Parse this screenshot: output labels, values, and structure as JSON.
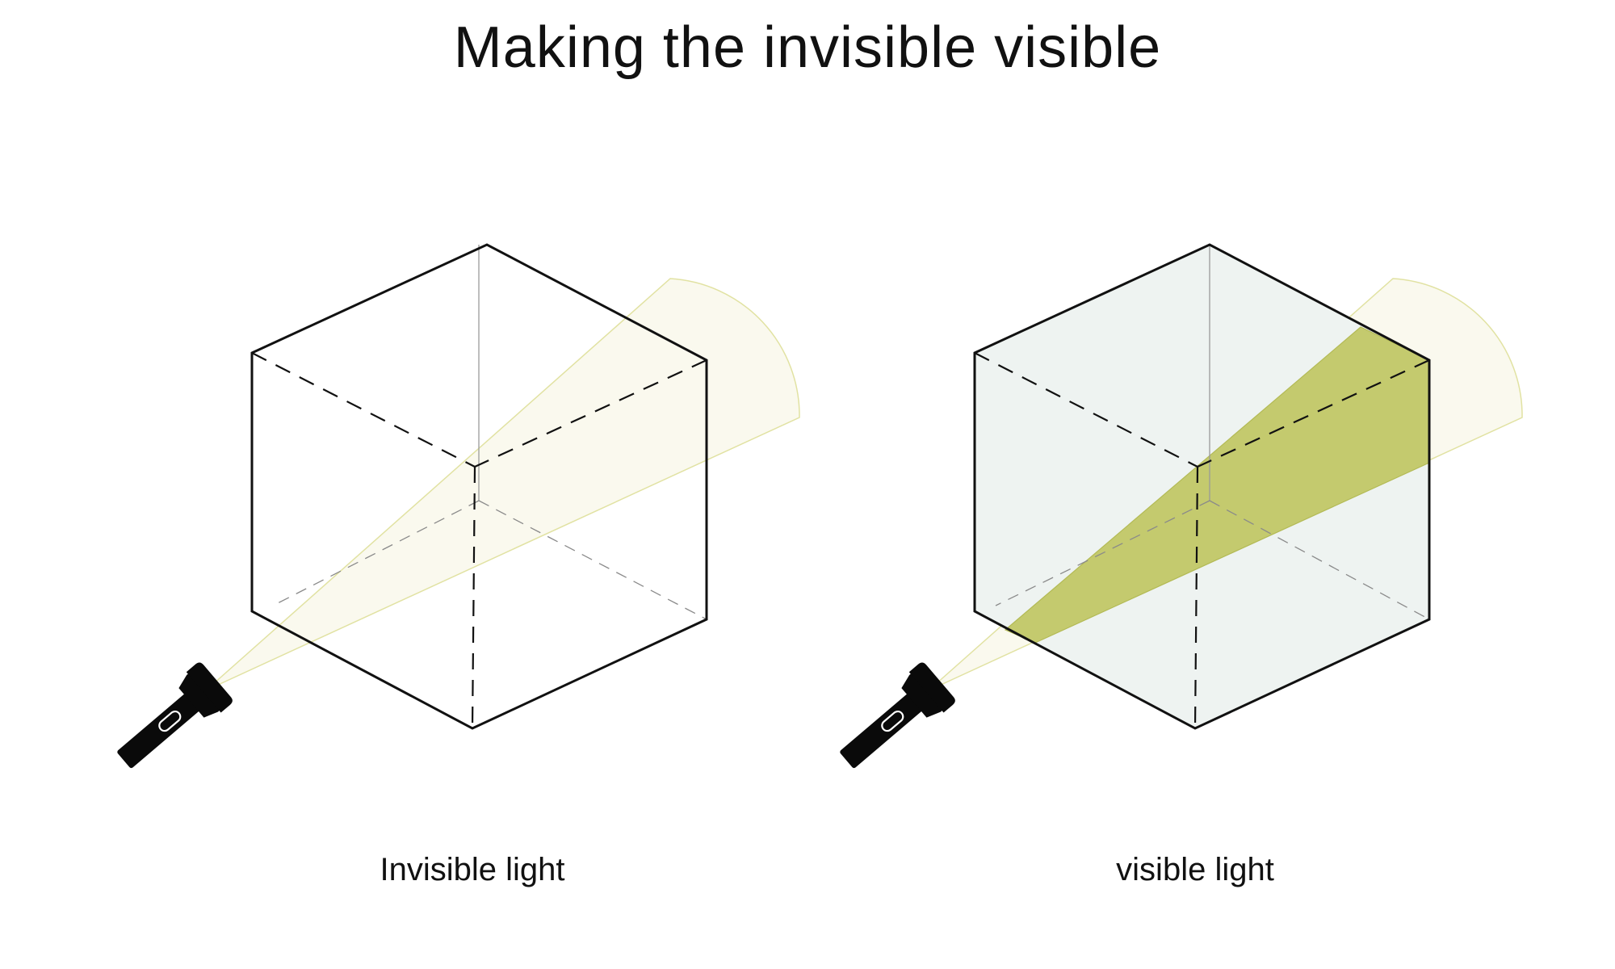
{
  "title": "Making the invisible visible",
  "panels": [
    {
      "caption": "Invisible light",
      "state": "invisible"
    },
    {
      "caption": "visible light",
      "state": "visible"
    }
  ],
  "colors": {
    "line": "#111111",
    "beam_faint": "#faf9ee",
    "beam_outline": "#e1e2a2",
    "beam_visible": "#c4ca6e",
    "cube_fill": "#eef3f1",
    "flashlight": "#0a0a0a"
  }
}
